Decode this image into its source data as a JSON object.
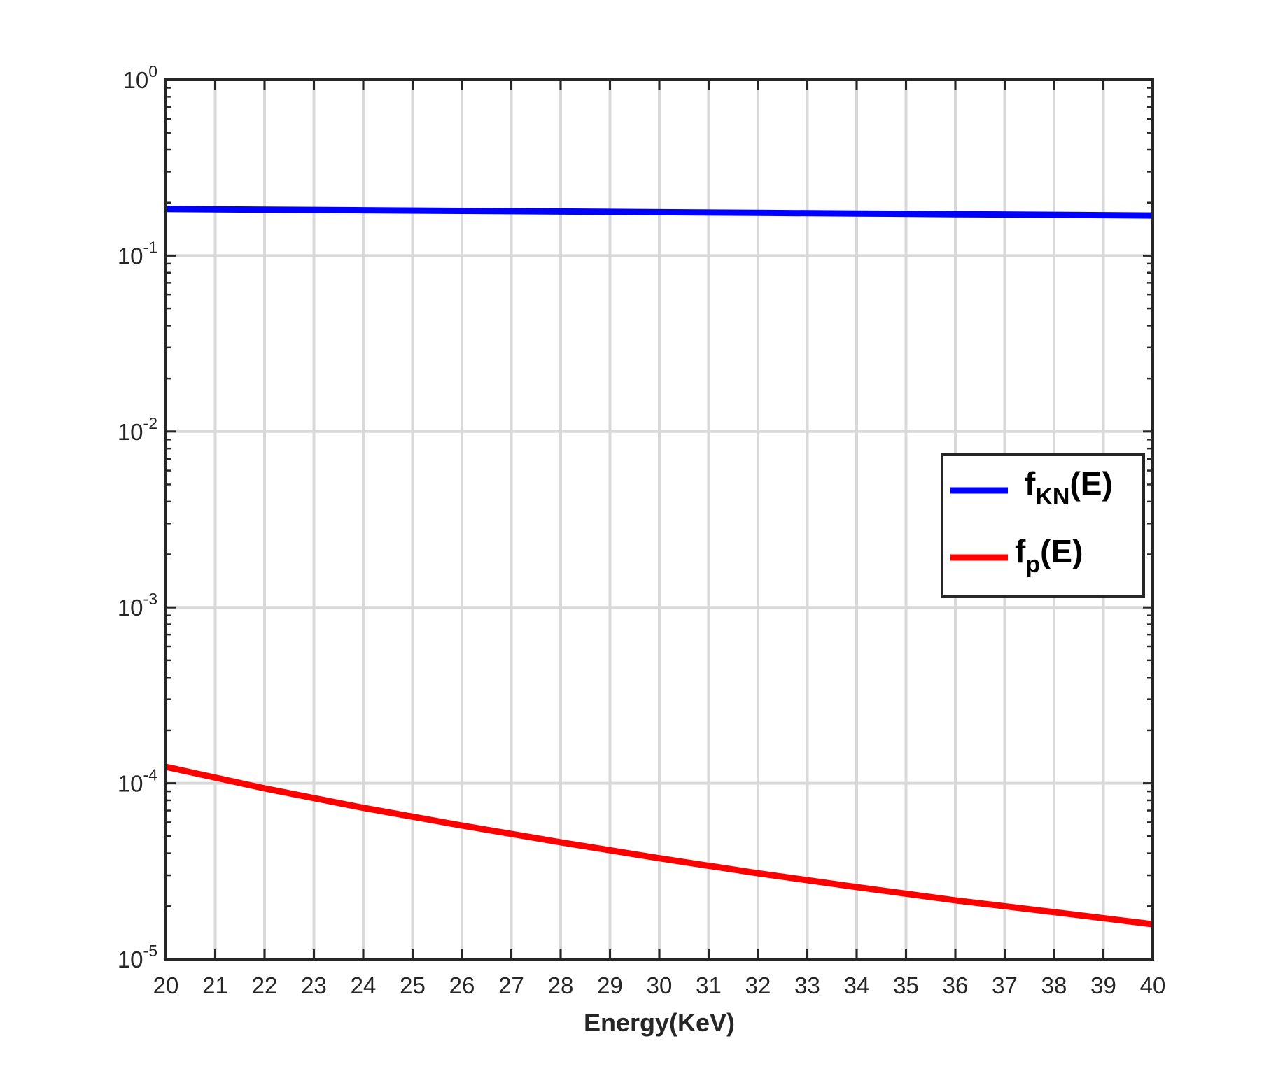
{
  "chart_data": {
    "type": "line",
    "xlabel": "Energy(KeV)",
    "ylabel": "",
    "title": "",
    "xlim": [
      20,
      40
    ],
    "ylim": [
      1e-05,
      1
    ],
    "yscale": "log",
    "grid": true,
    "x_ticks": [
      "20",
      "21",
      "22",
      "23",
      "24",
      "25",
      "26",
      "27",
      "28",
      "29",
      "30",
      "31",
      "32",
      "33",
      "34",
      "35",
      "36",
      "37",
      "38",
      "39",
      "40"
    ],
    "y_ticks": [
      {
        "value": 1e-05,
        "base": "10",
        "exponent": "-5"
      },
      {
        "value": 0.0001,
        "base": "10",
        "exponent": "-4"
      },
      {
        "value": 0.001,
        "base": "10",
        "exponent": "-3"
      },
      {
        "value": 0.01,
        "base": "10",
        "exponent": "-2"
      },
      {
        "value": 0.1,
        "base": "10",
        "exponent": "-1"
      },
      {
        "value": 1,
        "base": "10",
        "exponent": "0"
      }
    ],
    "legend_position": "right",
    "series": [
      {
        "legend_main": "f",
        "legend_sub": "KN",
        "legend_tail": "(E)",
        "color": "#0000ff",
        "x": [
          20,
          22,
          24,
          26,
          28,
          30,
          32,
          34,
          36,
          38,
          40
        ],
        "y": [
          0.184,
          0.1825,
          0.181,
          0.1795,
          0.178,
          0.1765,
          0.175,
          0.1735,
          0.172,
          0.1705,
          0.169
        ]
      },
      {
        "legend_main": "f",
        "legend_sub": "p",
        "legend_tail": "(E)",
        "color": "#ff0000",
        "x": [
          20,
          22,
          24,
          26,
          28,
          30,
          32,
          34,
          36,
          38,
          40
        ],
        "y": [
          0.000124,
          9.35e-05,
          7.25e-05,
          5.75e-05,
          4.62e-05,
          3.75e-05,
          3.08e-05,
          2.57e-05,
          2.16e-05,
          1.85e-05,
          1.58e-05
        ]
      }
    ]
  }
}
